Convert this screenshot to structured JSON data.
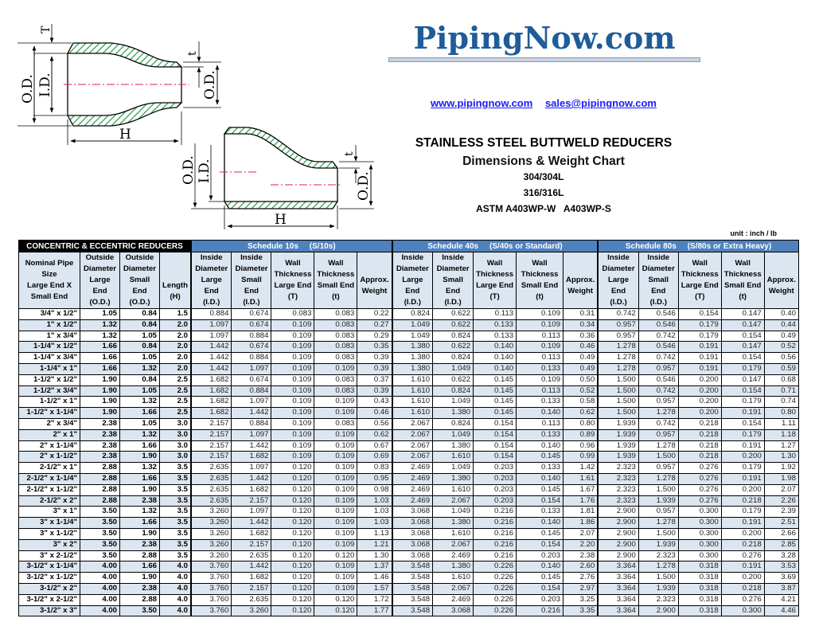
{
  "header": {
    "logo_text": "PipingNow.com",
    "website_link": "www.pipingnow.com",
    "email_link": "sales@pipingnow.com",
    "title": "STAINLESS STEEL BUTTWELD REDUCERS",
    "subtitle": "Dimensions & Weight Chart",
    "grade_1": "304/304L",
    "grade_2": "316/316L",
    "standards": "ASTM A403WP-W   A403WP-S",
    "unit": "unit : inch / lb",
    "brand_color": "#1f5c99"
  },
  "drawing": {
    "concentric": {
      "od_large": "O.D.",
      "id_large": "I.D.",
      "wall_large": "T",
      "wall_small": "t",
      "od_small": "O.D.",
      "length": "H"
    },
    "eccentric": {
      "od_large": "O.D.",
      "id_large": "I.D.",
      "wall_small": "t",
      "od_small": "O.D.",
      "length": "H"
    },
    "hatch_color": "#2e9e4f",
    "centerline_color": "#e0204a"
  },
  "table": {
    "title": "CONCENTRIC & ECCENTRIC REDUCERS",
    "schedules": [
      "Schedule 10s     (S/10s)",
      "Schedule 40s     (S/40s or Standard)",
      "Schedule 80s     (S/80s or Extra Heavy)"
    ],
    "columns": [
      "Nominal Pipe\nSize\nLarge End X\nSmall End",
      "Outside\nDiameter\nLarge End\n(O.D.)",
      "Outside\nDiameter\nSmall End\n(O.D.)",
      "\n\nLength\n(H)",
      "Inside\nDiameter\nLarge End\n(I.D.)",
      "Inside\nDiameter\nSmall End\n(I.D.)",
      "Wall\nThickness\nLarge End\n(T)",
      "Wall\nThickness\nSmall End\n(t)",
      "\nApprox.\nWeight\n",
      "Inside\nDiameter\nLarge End\n(I.D.)",
      "Inside\nDiameter\nSmall End\n(I.D.)",
      "Wall\nThickness\nLarge End\n(T)",
      "Wall\nThickness\nSmall End\n(t)",
      "\nApprox.\nWeight\n",
      "Inside\nDiameter\nLarge End\n(I.D.)",
      "Inside\nDiameter\nSmall End\n(I.D.)",
      "Wall\nThickness\nLarge End\n(T)",
      "Wall\nThickness\nSmall End\n(t)",
      "\nApprox.\nWeight\n"
    ],
    "rows": [
      [
        "3/4\" x 1/2\"",
        "1.05",
        "0.84",
        "1.5",
        "0.884",
        "0.674",
        "0.083",
        "0.083",
        "0.22",
        "0.824",
        "0.622",
        "0.113",
        "0.109",
        "0.31",
        "0.742",
        "0.546",
        "0.154",
        "0.147",
        "0.40"
      ],
      [
        "1\" x 1/2\"",
        "1.32",
        "0.84",
        "2.0",
        "1.097",
        "0.674",
        "0.109",
        "0.083",
        "0.27",
        "1.049",
        "0.622",
        "0.133",
        "0.109",
        "0.34",
        "0.957",
        "0.546",
        "0.179",
        "0.147",
        "0.44"
      ],
      [
        "1\" x 3/4\"",
        "1.32",
        "1.05",
        "2.0",
        "1.097",
        "0.884",
        "0.109",
        "0.083",
        "0.29",
        "1.049",
        "0.824",
        "0.133",
        "0.113",
        "0.36",
        "0.957",
        "0.742",
        "0.179",
        "0.154",
        "0.49"
      ],
      [
        "1-1/4\" x 1/2\"",
        "1.66",
        "0.84",
        "2.0",
        "1.442",
        "0.674",
        "0.109",
        "0.083",
        "0.35",
        "1.380",
        "0.622",
        "0.140",
        "0.109",
        "0.46",
        "1.278",
        "0.546",
        "0.191",
        "0.147",
        "0.52"
      ],
      [
        "1-1/4\" x 3/4\"",
        "1.66",
        "1.05",
        "2.0",
        "1.442",
        "0.884",
        "0.109",
        "0.083",
        "0.39",
        "1.380",
        "0.824",
        "0.140",
        "0.113",
        "0.49",
        "1.278",
        "0.742",
        "0.191",
        "0.154",
        "0.56"
      ],
      [
        "1-1/4\" x 1\"",
        "1.66",
        "1.32",
        "2.0",
        "1.442",
        "1.097",
        "0.109",
        "0.109",
        "0.39",
        "1.380",
        "1.049",
        "0.140",
        "0.133",
        "0.49",
        "1.278",
        "0.957",
        "0.191",
        "0.179",
        "0.59"
      ],
      [
        "1-1/2\" x 1/2\"",
        "1.90",
        "0.84",
        "2.5",
        "1.682",
        "0.674",
        "0.109",
        "0.083",
        "0.37",
        "1.610",
        "0.622",
        "0.145",
        "0.109",
        "0.50",
        "1.500",
        "0.546",
        "0.200",
        "0.147",
        "0.68"
      ],
      [
        "1-1/2\" x 3/4\"",
        "1.90",
        "1.05",
        "2.5",
        "1.682",
        "0.884",
        "0.109",
        "0.083",
        "0.39",
        "1.610",
        "0.824",
        "0.145",
        "0.113",
        "0.52",
        "1.500",
        "0.742",
        "0.200",
        "0.154",
        "0.71"
      ],
      [
        "1-1/2\" x 1\"",
        "1.90",
        "1.32",
        "2.5",
        "1.682",
        "1.097",
        "0.109",
        "0.109",
        "0.43",
        "1.610",
        "1.049",
        "0.145",
        "0.133",
        "0.58",
        "1.500",
        "0.957",
        "0.200",
        "0.179",
        "0.74"
      ],
      [
        "1-1/2\" x 1-1/4\"",
        "1.90",
        "1.66",
        "2.5",
        "1.682",
        "1.442",
        "0.109",
        "0.109",
        "0.46",
        "1.610",
        "1.380",
        "0.145",
        "0.140",
        "0.62",
        "1.500",
        "1.278",
        "0.200",
        "0.191",
        "0.80"
      ],
      [
        "2\" x 3/4\"",
        "2.38",
        "1.05",
        "3.0",
        "2.157",
        "0.884",
        "0.109",
        "0.083",
        "0.56",
        "2.067",
        "0.824",
        "0.154",
        "0.113",
        "0.80",
        "1.939",
        "0.742",
        "0.218",
        "0.154",
        "1.11"
      ],
      [
        "2\" x 1\"",
        "2.38",
        "1.32",
        "3.0",
        "2.157",
        "1.097",
        "0.109",
        "0.109",
        "0.62",
        "2.067",
        "1.049",
        "0.154",
        "0.133",
        "0.89",
        "1.939",
        "0.957",
        "0.218",
        "0.179",
        "1.18"
      ],
      [
        "2\" x 1-1/4\"",
        "2.38",
        "1.66",
        "3.0",
        "2.157",
        "1.442",
        "0.109",
        "0.109",
        "0.67",
        "2.067",
        "1.380",
        "0.154",
        "0.140",
        "0.96",
        "1.939",
        "1.278",
        "0.218",
        "0.191",
        "1.27"
      ],
      [
        "2\" x 1-1/2\"",
        "2.38",
        "1.90",
        "3.0",
        "2.157",
        "1.682",
        "0.109",
        "0.109",
        "0.69",
        "2.067",
        "1.610",
        "0.154",
        "0.145",
        "0.99",
        "1.939",
        "1.500",
        "0.218",
        "0.200",
        "1.30"
      ],
      [
        "2-1/2\" x 1\"",
        "2.88",
        "1.32",
        "3.5",
        "2.635",
        "1.097",
        "0.120",
        "0.109",
        "0.83",
        "2.469",
        "1.049",
        "0.203",
        "0.133",
        "1.42",
        "2.323",
        "0.957",
        "0.276",
        "0.179",
        "1.92"
      ],
      [
        "2-1/2\" x 1-1/4\"",
        "2.88",
        "1.66",
        "3.5",
        "2.635",
        "1.442",
        "0.120",
        "0.109",
        "0.95",
        "2.469",
        "1.380",
        "0.203",
        "0.140",
        "1.61",
        "2.323",
        "1.278",
        "0.276",
        "0.191",
        "1.98"
      ],
      [
        "2-1/2\" x 1-1/2\"",
        "2.88",
        "1.90",
        "3.5",
        "2.635",
        "1.682",
        "0.120",
        "0.109",
        "0.98",
        "2.469",
        "1.610",
        "0.203",
        "0.145",
        "1.67",
        "2.323",
        "1.500",
        "0.276",
        "0.200",
        "2.07"
      ],
      [
        "2-1/2\" x 2\"",
        "2.88",
        "2.38",
        "3.5",
        "2.635",
        "2.157",
        "0.120",
        "0.109",
        "1.03",
        "2.469",
        "2.067",
        "0.203",
        "0.154",
        "1.76",
        "2.323",
        "1.939",
        "0.276",
        "0.218",
        "2.26"
      ],
      [
        "3\" x 1\"",
        "3.50",
        "1.32",
        "3.5",
        "3.260",
        "1.097",
        "0.120",
        "0.109",
        "1.03",
        "3.068",
        "1.049",
        "0.216",
        "0.133",
        "1.81",
        "2.900",
        "0.957",
        "0.300",
        "0.179",
        "2.39"
      ],
      [
        "3\" x 1-1/4\"",
        "3.50",
        "1.66",
        "3.5",
        "3.260",
        "1.442",
        "0.120",
        "0.109",
        "1.03",
        "3.068",
        "1.380",
        "0.216",
        "0.140",
        "1.86",
        "2.900",
        "1.278",
        "0.300",
        "0.191",
        "2.51"
      ],
      [
        "3\" x 1-1/2\"",
        "3.50",
        "1.90",
        "3.5",
        "3.260",
        "1.682",
        "0.120",
        "0.109",
        "1.13",
        "3.068",
        "1.610",
        "0.216",
        "0.145",
        "2.07",
        "2.900",
        "1.500",
        "0.300",
        "0.200",
        "2.66"
      ],
      [
        "3\" x 2\"",
        "3.50",
        "2.38",
        "3.5",
        "3.260",
        "2.157",
        "0.120",
        "0.109",
        "1.21",
        "3.068",
        "2.067",
        "0.216",
        "0.154",
        "2.20",
        "2.900",
        "1.939",
        "0.300",
        "0.218",
        "2.85"
      ],
      [
        "3\" x 2-1/2\"",
        "3.50",
        "2.88",
        "3.5",
        "3.260",
        "2.635",
        "0.120",
        "0.120",
        "1.30",
        "3.068",
        "2.469",
        "0.216",
        "0.203",
        "2.38",
        "2.900",
        "2.323",
        "0.300",
        "0.276",
        "3.28"
      ],
      [
        "3-1/2\" x 1-1/4\"",
        "4.00",
        "1.66",
        "4.0",
        "3.760",
        "1.442",
        "0.120",
        "0.109",
        "1.37",
        "3.548",
        "1.380",
        "0.226",
        "0.140",
        "2.60",
        "3.364",
        "1.278",
        "0.318",
        "0.191",
        "3.53"
      ],
      [
        "3-1/2\" x 1-1/2\"",
        "4.00",
        "1.90",
        "4.0",
        "3.760",
        "1.682",
        "0.120",
        "0.109",
        "1.46",
        "3.548",
        "1.610",
        "0.226",
        "0.145",
        "2.76",
        "3.364",
        "1.500",
        "0.318",
        "0.200",
        "3.69"
      ],
      [
        "3-1/2\" x 2\"",
        "4.00",
        "2.38",
        "4.0",
        "3.760",
        "2.157",
        "0.120",
        "0.109",
        "1.57",
        "3.548",
        "2.067",
        "0.226",
        "0.154",
        "2.97",
        "3.364",
        "1.939",
        "0.318",
        "0.218",
        "3.87"
      ],
      [
        "3-1/2\" x 2-1/2\"",
        "4.00",
        "2.88",
        "4.0",
        "3.760",
        "2.635",
        "0.120",
        "0.120",
        "1.72",
        "3.548",
        "2.469",
        "0.226",
        "0.203",
        "3.25",
        "3.364",
        "2.323",
        "0.318",
        "0.276",
        "4.21"
      ],
      [
        "3-1/2\" x 3\"",
        "4.00",
        "3.50",
        "4.0",
        "3.760",
        "3.260",
        "0.120",
        "0.120",
        "1.77",
        "3.548",
        "3.068",
        "0.226",
        "0.216",
        "3.35",
        "3.364",
        "2.900",
        "0.318",
        "0.300",
        "4.46"
      ]
    ]
  }
}
